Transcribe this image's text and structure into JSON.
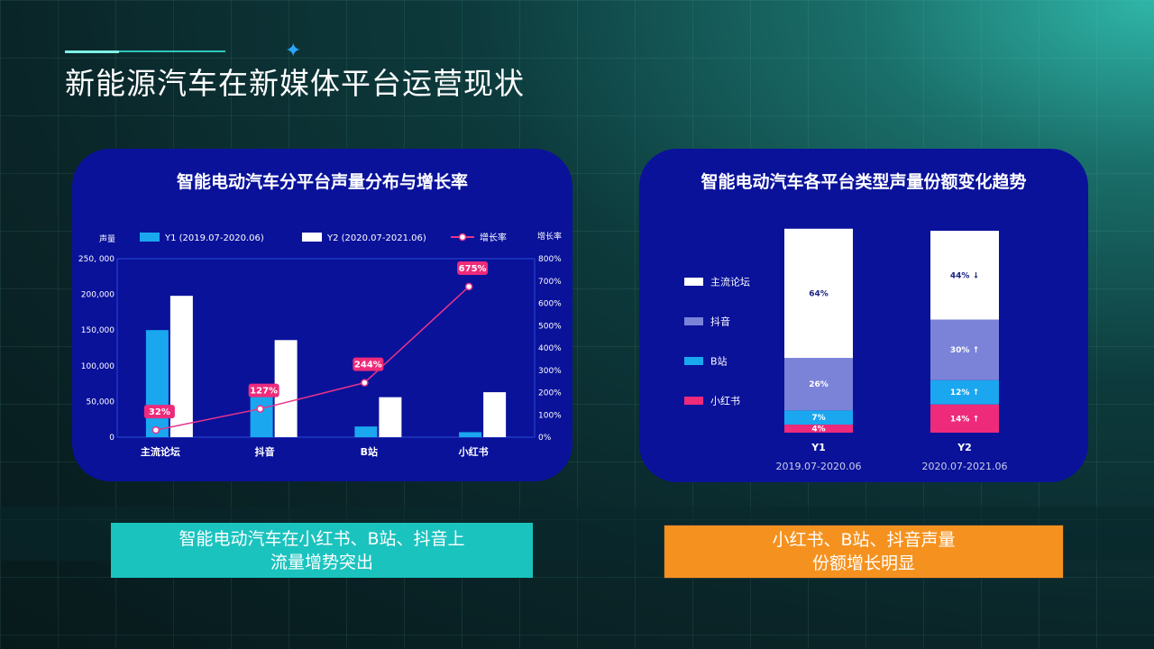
{
  "page": {
    "title": "新能源汽车在新媒体平台运营现状",
    "accent_color": "#2ec6bd"
  },
  "chart1": {
    "title": "智能电动汽车分平台声量分布与增长率",
    "left_axis_label": "声量",
    "right_axis_label": "增长率",
    "legend": [
      "Y1 (2019.07-2020.06)",
      "Y2 (2020.07-2021.06)",
      "增长率"
    ],
    "left_ticks": [
      "0",
      "50,000",
      "100,000",
      "150,000",
      "200,000",
      "250, 000"
    ],
    "right_ticks": [
      "0%",
      "100%",
      "200%",
      "300%",
      "400%",
      "500%",
      "600%",
      "700%",
      "800%"
    ],
    "growth_labels": [
      "32%",
      "127%",
      "244%",
      "675%"
    ]
  },
  "chart2": {
    "title": "智能电动汽车各平台类型声量份额变化趋势",
    "legend": [
      "主流论坛",
      "抖音",
      "B站",
      "小红书"
    ],
    "bar_labels": [
      "Y1",
      "Y2"
    ],
    "bar_sublabels": [
      "2019.07-2020.06",
      "2020.07-2021.06"
    ],
    "y1_labels": [
      "64%",
      "26%",
      "7%",
      "4%"
    ],
    "y2_labels": [
      "44% ↓",
      "30% ↑",
      "12% ↑",
      "14% ↑"
    ]
  },
  "chart_data": [
    {
      "type": "bar",
      "title": "智能电动汽车分平台声量分布与增长率",
      "categories": [
        "主流论坛",
        "抖音",
        "B站",
        "小红书"
      ],
      "ylabel": "声量",
      "ylim": [
        0,
        250000
      ],
      "y2label": "增长率",
      "y2lim": [
        0,
        800
      ],
      "series": [
        {
          "name": "Y1 (2019.07-2020.06)",
          "type": "bar",
          "axis": "left",
          "color": "#1aa7ef",
          "values": [
            150000,
            60000,
            15000,
            7000
          ]
        },
        {
          "name": "Y2 (2020.07-2021.06)",
          "type": "bar",
          "axis": "left",
          "color": "#ffffff",
          "values": [
            198000,
            136000,
            56000,
            63000
          ]
        },
        {
          "name": "增长率",
          "type": "line",
          "axis": "right",
          "color": "#e8348a",
          "values": [
            32,
            127,
            244,
            675
          ]
        }
      ],
      "legend_position": "top",
      "grid": false
    },
    {
      "type": "bar",
      "stacked": true,
      "title": "智能电动汽车各平台类型声量份额变化趋势",
      "categories": [
        "Y1",
        "Y2"
      ],
      "series": [
        {
          "name": "小红书",
          "color": "#ee2a7b",
          "values": [
            4,
            14
          ]
        },
        {
          "name": "B站",
          "color": "#1aa7ef",
          "values": [
            7,
            12
          ]
        },
        {
          "name": "抖音",
          "color": "#7b83d9",
          "values": [
            26,
            30
          ]
        },
        {
          "name": "主流论坛",
          "color": "#ffffff",
          "values": [
            64,
            44
          ]
        }
      ],
      "legend_position": "left"
    }
  ],
  "captions": {
    "left": [
      "智能电动汽车在小红书、B站、抖音上",
      "流量增势突出"
    ],
    "right": [
      "小红书、B站、抖音声量",
      "份额增长明显"
    ],
    "left_color": "#1bc3bf",
    "right_color": "#f5921f"
  }
}
